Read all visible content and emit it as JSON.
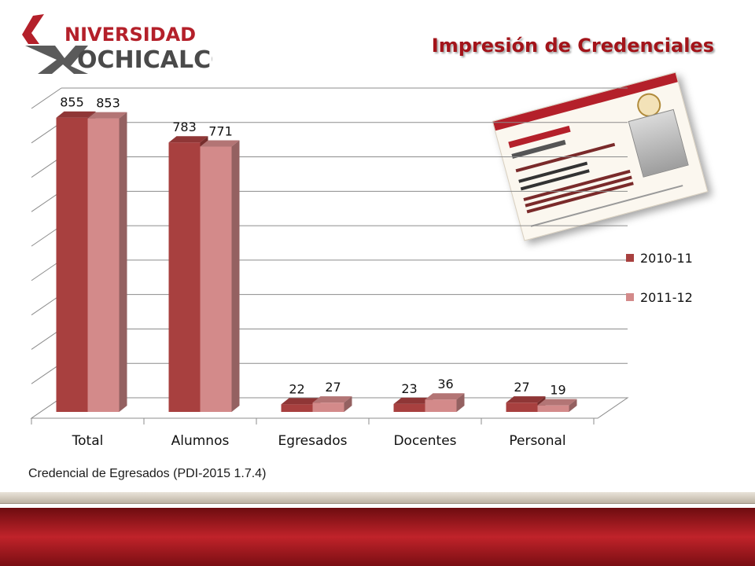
{
  "header": {
    "title": "Impresión de Credenciales",
    "logo_text_top": "NIVERSIDAD",
    "logo_text_bottom": "OCHICALCO"
  },
  "colors": {
    "series_2010": "#a8403f",
    "series_2011": "#d38a8a",
    "title": "#a3141a",
    "footer": "#b7212a"
  },
  "caption": "Credencial de Egresados (PDI-2015 1.7.4)",
  "chart_data": {
    "type": "bar",
    "categories": [
      "Total",
      "Alumnos",
      "Egresados",
      "Docentes",
      "Personal"
    ],
    "series": [
      {
        "name": "2010-11",
        "values": [
          855,
          783,
          22,
          23,
          27
        ]
      },
      {
        "name": "2011-12",
        "values": [
          853,
          771,
          27,
          36,
          19
        ]
      }
    ],
    "ylim": [
      0,
      900
    ],
    "grid": true,
    "legend": "right",
    "data_labels": true
  }
}
